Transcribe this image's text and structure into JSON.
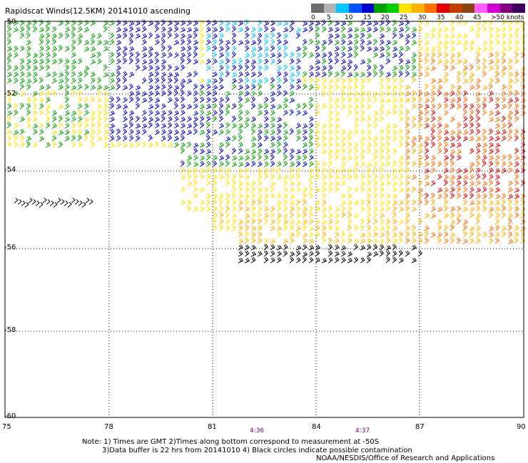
{
  "title": "Rapidscat Winds(12.5KM) 20141010 ascending",
  "legend": {
    "colors": [
      "#6a6a6a",
      "#b4b4b4",
      "#00c8ff",
      "#0050ff",
      "#0000c8",
      "#00a000",
      "#00d000",
      "#ffe000",
      "#ffb000",
      "#ff7000",
      "#e00000",
      "#c04000",
      "#8b4513",
      "#ff60ff",
      "#d000d0",
      "#800080",
      "#400060"
    ],
    "labels": [
      "0",
      "5",
      "10",
      "15",
      "20",
      "25",
      "30",
      "35",
      "40",
      "45",
      ">50 knots"
    ]
  },
  "axes": {
    "lon_labels": [
      "75",
      "78",
      "81",
      "84",
      "87",
      "90"
    ],
    "lat_labels": [
      "-50",
      "-52",
      "-54",
      "-56",
      "-58",
      "-60"
    ]
  },
  "times": [
    "4:36",
    "4:37"
  ],
  "notes": {
    "line1": "Note: 1) Times are GMT 2)Times along bottom correspond to measurement at -50S",
    "line2": "3)Data buffer is 22 hrs from 20141010 4) Black circles indicate possible contamination",
    "line3": "NOAA/NESDIS/Office of Research and Applications"
  },
  "wind_bands": [
    {
      "speed": "20-25",
      "color": "#00a000"
    },
    {
      "speed": "15-20",
      "color": "#0000c8"
    },
    {
      "speed": "10-15",
      "color": "#00c8ff"
    },
    {
      "speed": "25-30",
      "color": "#ffe000"
    },
    {
      "speed": "30-35",
      "color": "#ffb000"
    },
    {
      "speed": "35-40",
      "color": "#ff7000"
    },
    {
      "speed": "40-45",
      "color": "#e00000"
    },
    {
      "speed": "contaminated",
      "color": "#000000"
    }
  ]
}
